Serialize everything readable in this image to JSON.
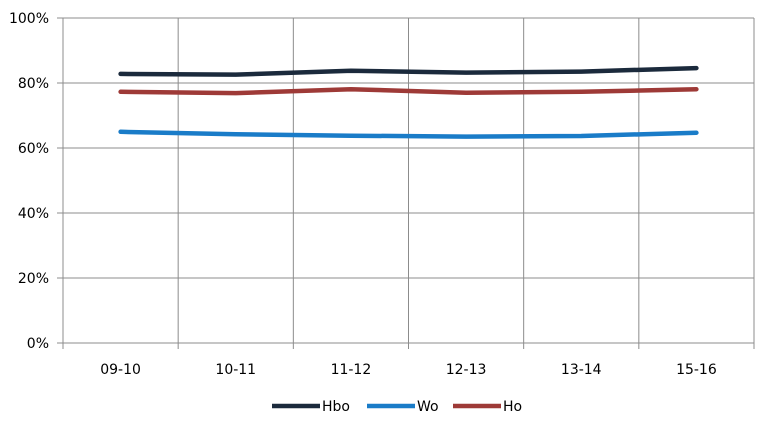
{
  "chart_data": {
    "type": "line",
    "title": "",
    "xlabel": "",
    "ylabel": "",
    "categories": [
      "09-10",
      "10-11",
      "11-12",
      "12-13",
      "13-14",
      "15-16"
    ],
    "y_ticks": [
      "0%",
      "20%",
      "40%",
      "60%",
      "80%",
      "100%"
    ],
    "ylim": [
      0,
      100
    ],
    "grid": true,
    "legend_position": "bottom",
    "series": [
      {
        "name": "Hbo",
        "color": "#1b2a3c",
        "values": [
          82.8,
          82.6,
          83.8,
          83.2,
          83.5,
          84.6
        ]
      },
      {
        "name": "Wo",
        "color": "#1a7cc8",
        "values": [
          65.0,
          64.2,
          63.8,
          63.5,
          63.7,
          64.7
        ]
      },
      {
        "name": "Ho",
        "color": "#9e3a37",
        "values": [
          77.3,
          76.9,
          78.1,
          77.0,
          77.3,
          78.1
        ]
      }
    ]
  }
}
